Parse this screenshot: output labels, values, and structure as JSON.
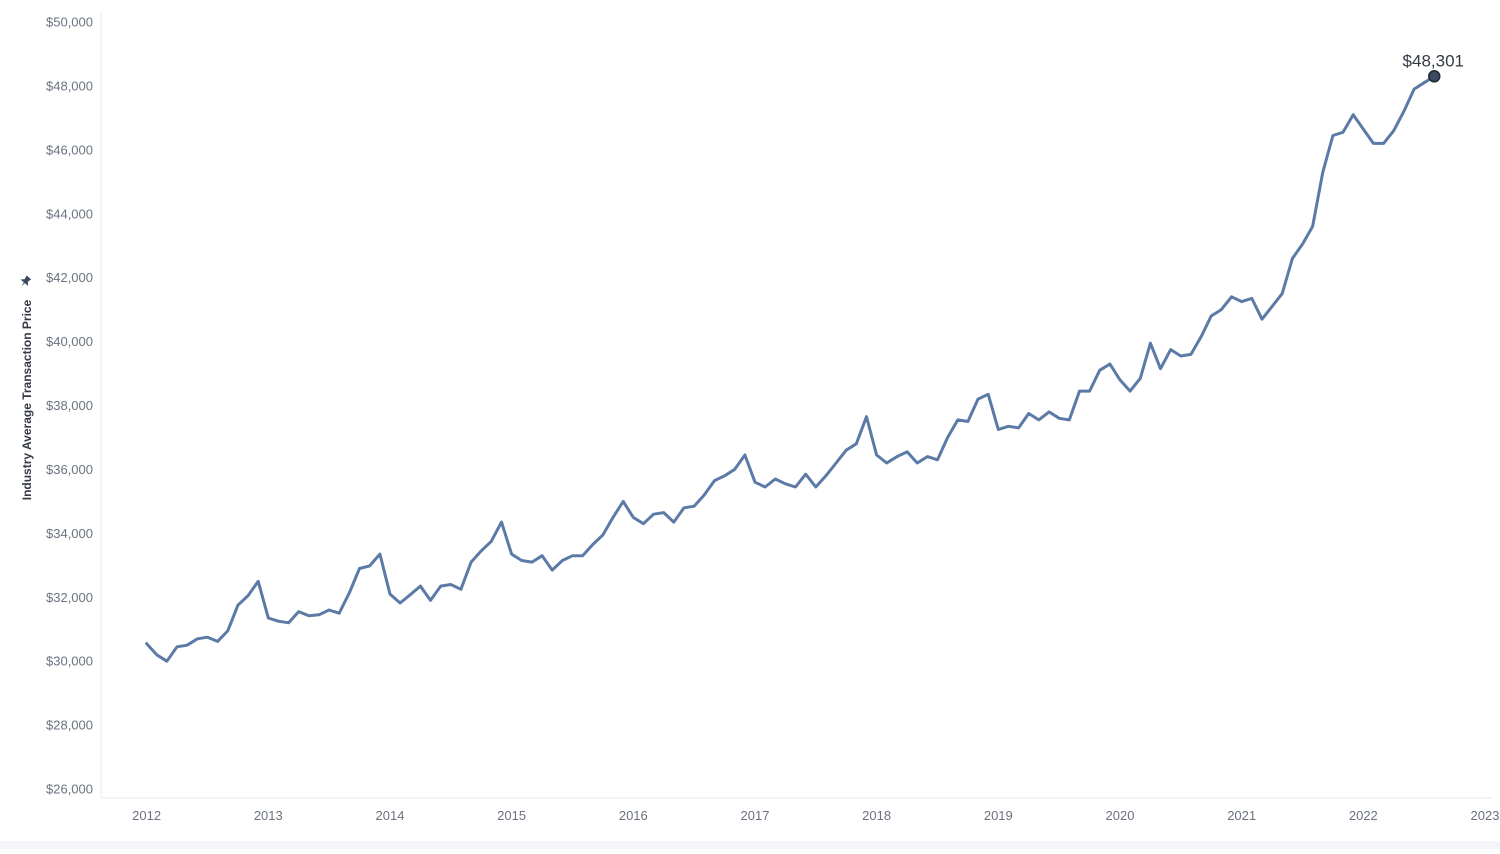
{
  "chart_data": {
    "type": "line",
    "ylabel": "Industry Average Transaction Price",
    "xlabel": "",
    "ylim": [
      26000,
      50000
    ],
    "xlim": [
      2011.625,
      2023.0
    ],
    "y_ticks": [
      26000,
      28000,
      30000,
      32000,
      34000,
      36000,
      38000,
      40000,
      42000,
      44000,
      46000,
      48000,
      50000
    ],
    "y_tick_labels": [
      "$26,000",
      "$28,000",
      "$30,000",
      "$32,000",
      "$34,000",
      "$36,000",
      "$38,000",
      "$40,000",
      "$42,000",
      "$44,000",
      "$46,000",
      "$48,000",
      "$50,000"
    ],
    "x_ticks": [
      2012,
      2013,
      2014,
      2015,
      2016,
      2017,
      2018,
      2019,
      2020,
      2021,
      2022,
      2023
    ],
    "x_tick_labels": [
      "2012",
      "2013",
      "2014",
      "2015",
      "2016",
      "2017",
      "2018",
      "2019",
      "2020",
      "2021",
      "2022",
      "2023"
    ],
    "grid": false,
    "line_color": "#5b7aa5",
    "marker_color": "#3b4a5e",
    "annotation": {
      "label": "$48,301",
      "x": 2022.583,
      "y": 48301
    },
    "series": [
      {
        "x": [
          2012.0,
          2012.083,
          2012.167,
          2012.25,
          2012.333,
          2012.417,
          2012.5,
          2012.583,
          2012.667,
          2012.75,
          2012.833,
          2012.917,
          2013.0,
          2013.083,
          2013.167,
          2013.25,
          2013.333,
          2013.417,
          2013.5,
          2013.583,
          2013.667,
          2013.75,
          2013.833,
          2013.917,
          2014.0,
          2014.083,
          2014.167,
          2014.25,
          2014.333,
          2014.417,
          2014.5,
          2014.583,
          2014.667,
          2014.75,
          2014.833,
          2014.917,
          2015.0,
          2015.083,
          2015.167,
          2015.25,
          2015.333,
          2015.417,
          2015.5,
          2015.583,
          2015.667,
          2015.75,
          2015.833,
          2015.917,
          2016.0,
          2016.083,
          2016.167,
          2016.25,
          2016.333,
          2016.417,
          2016.5,
          2016.583,
          2016.667,
          2016.75,
          2016.833,
          2016.917,
          2017.0,
          2017.083,
          2017.167,
          2017.25,
          2017.333,
          2017.417,
          2017.5,
          2017.583,
          2017.667,
          2017.75,
          2017.833,
          2017.917,
          2018.0,
          2018.083,
          2018.167,
          2018.25,
          2018.333,
          2018.417,
          2018.5,
          2018.583,
          2018.667,
          2018.75,
          2018.833,
          2018.917,
          2019.0,
          2019.083,
          2019.167,
          2019.25,
          2019.333,
          2019.417,
          2019.5,
          2019.583,
          2019.667,
          2019.75,
          2019.833,
          2019.917,
          2020.0,
          2020.083,
          2020.167,
          2020.25,
          2020.333,
          2020.417,
          2020.5,
          2020.583,
          2020.667,
          2020.75,
          2020.833,
          2020.917,
          2021.0,
          2021.083,
          2021.167,
          2021.25,
          2021.333,
          2021.417,
          2021.5,
          2021.583,
          2021.667,
          2021.75,
          2021.833,
          2021.917,
          2022.0,
          2022.083,
          2022.167,
          2022.25,
          2022.333,
          2022.417,
          2022.5,
          2022.583
        ],
        "y": [
          30550,
          30200,
          30000,
          30450,
          30500,
          30700,
          30750,
          30620,
          30950,
          31750,
          32050,
          32500,
          31350,
          31250,
          31200,
          31550,
          31420,
          31450,
          31600,
          31500,
          32150,
          32900,
          32980,
          33350,
          32100,
          31820,
          32080,
          32350,
          31900,
          32350,
          32400,
          32250,
          33100,
          33450,
          33750,
          34350,
          33350,
          33150,
          33100,
          33300,
          32850,
          33150,
          33300,
          33300,
          33650,
          33950,
          34500,
          35000,
          34500,
          34300,
          34600,
          34650,
          34350,
          34800,
          34850,
          35200,
          35650,
          35800,
          36000,
          36450,
          35600,
          35450,
          35700,
          35550,
          35450,
          35850,
          35450,
          35800,
          36200,
          36600,
          36800,
          37650,
          36450,
          36200,
          36400,
          36550,
          36200,
          36400,
          36300,
          37000,
          37550,
          37500,
          38200,
          38350,
          37250,
          37350,
          37300,
          37750,
          37550,
          37800,
          37600,
          37550,
          38450,
          38450,
          39100,
          39300,
          38800,
          38450,
          38850,
          39950,
          39150,
          39750,
          39550,
          39600,
          40150,
          40800,
          41000,
          41400,
          41250,
          41350,
          40700,
          41100,
          41500,
          42600,
          43050,
          43600,
          45300,
          46450,
          46550,
          47100,
          46650,
          46200,
          46200,
          46600,
          47200,
          47900,
          48100,
          48301
        ]
      }
    ]
  }
}
